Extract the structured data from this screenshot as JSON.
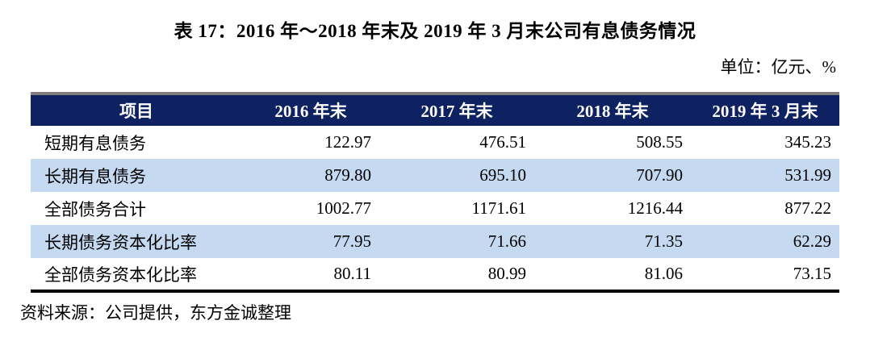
{
  "title": "表 17：2016 年～2018 年末及 2019 年 3 月末公司有息债务情况",
  "unit_note": "单位：亿元、%",
  "table": {
    "columns": [
      "项目",
      "2016 年末",
      "2017 年末",
      "2018 年末",
      "2019 年 3 月末"
    ],
    "rows": [
      {
        "label": "短期有息债务",
        "values": [
          "122.97",
          "476.51",
          "508.55",
          "345.23"
        ]
      },
      {
        "label": "长期有息债务",
        "values": [
          "879.80",
          "695.10",
          "707.90",
          "531.99"
        ]
      },
      {
        "label": "全部债务合计",
        "values": [
          "1002.77",
          "1171.61",
          "1216.44",
          "877.22"
        ]
      },
      {
        "label": "长期债务资本化比率",
        "values": [
          "77.95",
          "71.66",
          "71.35",
          "62.29"
        ]
      },
      {
        "label": "全部债务资本化比率",
        "values": [
          "80.11",
          "80.99",
          "81.06",
          "73.15"
        ]
      }
    ]
  },
  "source_note": "资料来源：公司提供，东方金诚整理",
  "colors": {
    "header_bg": "#0e2161",
    "header_text": "#ffffff",
    "alt_row_bg": "#c5d9f1",
    "table_top_border": "#7f7f7f",
    "table_bottom_border": "#000000"
  }
}
